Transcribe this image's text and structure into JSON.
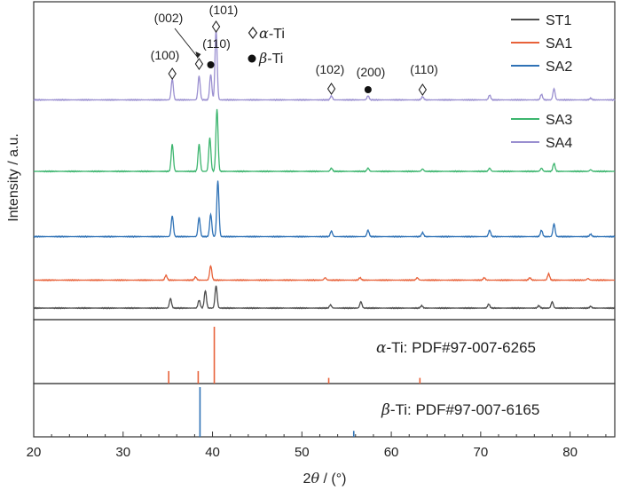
{
  "chart_data": {
    "type": "line",
    "title": "",
    "xlabel_prefix": "2",
    "xlabel_theta": "θ",
    "xlabel_suffix": " / (°)",
    "ylabel": "Intensity / a.u.",
    "xlim": [
      20,
      85
    ],
    "x_ticks": [
      20,
      30,
      40,
      50,
      60,
      70,
      80
    ],
    "grid": false,
    "legend": [
      {
        "name": "ST1",
        "color": "#4d4d4d"
      },
      {
        "name": "SA1",
        "color": "#e8623a"
      },
      {
        "name": "SA2",
        "color": "#2f72b6"
      },
      {
        "name": "SA3",
        "color": "#3cb56e"
      },
      {
        "name": "SA4",
        "color": "#9a8fd0"
      }
    ],
    "legend_position": "top-right",
    "series": [
      {
        "name": "ST1",
        "color": "#4d4d4d",
        "baseline": 0.0,
        "peaks": [
          [
            35.3,
            12
          ],
          [
            38.5,
            10
          ],
          [
            39.2,
            22
          ],
          [
            40.4,
            28
          ],
          [
            53.2,
            4
          ],
          [
            56.6,
            8
          ],
          [
            63.4,
            3
          ],
          [
            70.9,
            5
          ],
          [
            76.5,
            3
          ],
          [
            78.0,
            8
          ],
          [
            82.3,
            2
          ]
        ]
      },
      {
        "name": "SA1",
        "color": "#e8623a",
        "baseline": 0.18,
        "peaks": [
          [
            34.8,
            6
          ],
          [
            38.1,
            4
          ],
          [
            39.8,
            18
          ],
          [
            52.6,
            3
          ],
          [
            56.5,
            3
          ],
          [
            62.9,
            3
          ],
          [
            70.4,
            3
          ],
          [
            75.5,
            3
          ],
          [
            77.6,
            8
          ],
          [
            82.0,
            2
          ]
        ]
      },
      {
        "name": "SA2",
        "color": "#2f72b6",
        "baseline": 0.46,
        "peaks": [
          [
            35.5,
            26
          ],
          [
            38.5,
            24
          ],
          [
            39.8,
            28
          ],
          [
            40.6,
            70
          ],
          [
            53.3,
            7
          ],
          [
            57.4,
            8
          ],
          [
            63.5,
            5
          ],
          [
            71.0,
            8
          ],
          [
            76.8,
            8
          ],
          [
            78.2,
            16
          ],
          [
            82.3,
            3
          ]
        ]
      },
      {
        "name": "SA3",
        "color": "#3cb56e",
        "baseline": 0.88,
        "peaks": [
          [
            35.5,
            34
          ],
          [
            38.5,
            34
          ],
          [
            39.7,
            42
          ],
          [
            40.5,
            78
          ],
          [
            53.3,
            4
          ],
          [
            57.4,
            4
          ],
          [
            63.5,
            3
          ],
          [
            71.0,
            4
          ],
          [
            76.8,
            4
          ],
          [
            78.2,
            10
          ],
          [
            82.3,
            2
          ]
        ]
      },
      {
        "name": "SA4",
        "color": "#9a8fd0",
        "baseline": 1.34,
        "peaks": [
          [
            35.5,
            26
          ],
          [
            38.5,
            30
          ],
          [
            39.8,
            32
          ],
          [
            40.4,
            88
          ],
          [
            53.3,
            5
          ],
          [
            57.4,
            5
          ],
          [
            63.5,
            4
          ],
          [
            71.0,
            6
          ],
          [
            76.8,
            7
          ],
          [
            78.2,
            14
          ],
          [
            82.3,
            2
          ]
        ]
      }
    ],
    "annotations": [
      {
        "label": "(100)",
        "x": 35.5,
        "marker": "diamond"
      },
      {
        "label": "(002)",
        "x": 38.5,
        "marker": "diamond"
      },
      {
        "label": "(110)",
        "x": 39.8,
        "marker": "dot"
      },
      {
        "label": "(101)",
        "x": 40.4,
        "marker": "diamond"
      },
      {
        "label": "(102)",
        "x": 53.3,
        "marker": "diamond"
      },
      {
        "label": "(200)",
        "x": 57.4,
        "marker": "dot"
      },
      {
        "label": "(110)",
        "x": 63.5,
        "marker": "diamond"
      }
    ],
    "phase_legend": [
      {
        "marker": "diamond",
        "symbol": "α",
        "text": "-Ti"
      },
      {
        "marker": "dot",
        "symbol": "β",
        "text": "-Ti"
      }
    ],
    "reference_alpha": {
      "symbol": "α",
      "label": "-Ti: PDF#97-007-6265",
      "color": "#e8623a",
      "lines": [
        [
          35.1,
          0.22
        ],
        [
          38.4,
          0.22
        ],
        [
          40.2,
          1.0
        ],
        [
          53.0,
          0.1
        ],
        [
          63.2,
          0.1
        ]
      ]
    },
    "reference_beta": {
      "symbol": "β",
      "label": "-Ti: PDF#97-007-6165",
      "color": "#2f72b6",
      "lines": [
        [
          38.6,
          1.0
        ],
        [
          55.8,
          0.12
        ]
      ]
    }
  }
}
